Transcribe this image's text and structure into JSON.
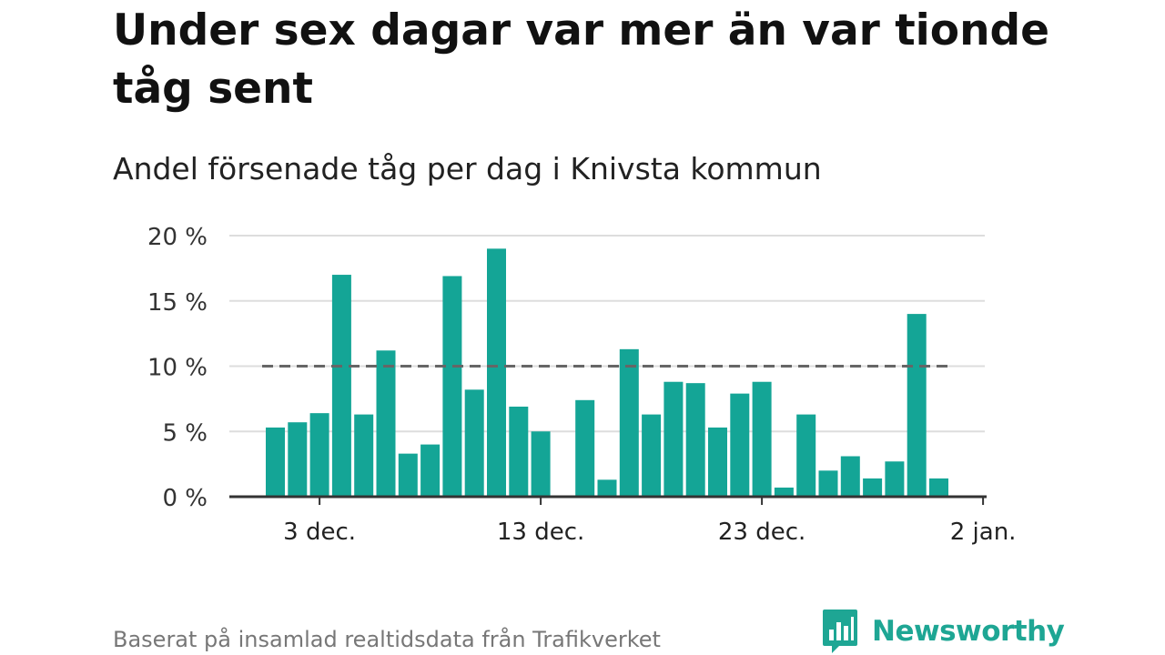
{
  "title": "Under sex dagar var mer än var tionde tåg sent",
  "subtitle": "Andel försenade tåg per dag i Knivsta kommun",
  "source": "Baserat på insamlad realtidsdata från Trafikverket",
  "brand": {
    "name": "Newsworthy",
    "logo_icon": "bar-chart-bubble-icon"
  },
  "colors": {
    "bar": "#14a596",
    "reference_line": "#666666",
    "grid": "#dddddd",
    "axis": "#333333",
    "brand": "#1ea694"
  },
  "chart_data": {
    "type": "bar",
    "title": "Under sex dagar var mer än var tionde tåg sent",
    "subtitle": "Andel försenade tåg per dag i Knivsta kommun",
    "xlabel": "",
    "ylabel": "",
    "x_start_day": 1,
    "x_day_count": 31,
    "values": [
      5.3,
      5.7,
      6.4,
      17.0,
      6.3,
      11.2,
      3.3,
      4.0,
      16.9,
      8.2,
      19.0,
      6.9,
      5.0,
      0,
      7.4,
      1.3,
      11.3,
      6.3,
      8.8,
      8.7,
      5.3,
      7.9,
      8.8,
      0.7,
      6.3,
      2.0,
      3.1,
      1.4,
      2.7,
      14.0,
      1.4
    ],
    "ylim": [
      0,
      20
    ],
    "yticks": [
      {
        "value": 0,
        "label": "0 %"
      },
      {
        "value": 5,
        "label": "5 %"
      },
      {
        "value": 10,
        "label": "10 %"
      },
      {
        "value": 15,
        "label": "15 %"
      },
      {
        "value": 20,
        "label": "20 %"
      }
    ],
    "xticks": [
      {
        "day": 3,
        "label": "3 dec."
      },
      {
        "day": 13,
        "label": "13 dec."
      },
      {
        "day": 23,
        "label": "23 dec."
      },
      {
        "day": 33,
        "label": "2 jan."
      }
    ],
    "reference_line": {
      "value": 10,
      "style": "dashed"
    },
    "grid": true,
    "legend": "none"
  }
}
